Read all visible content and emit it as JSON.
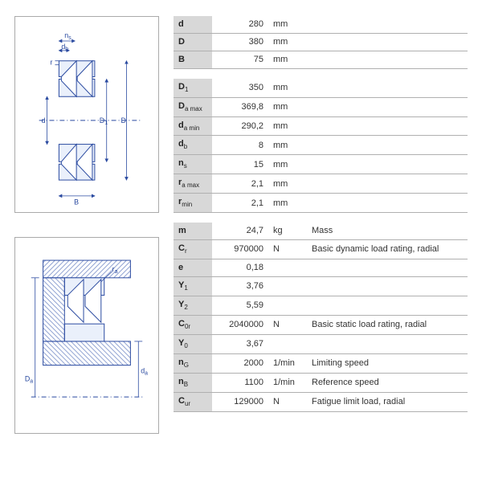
{
  "colors": {
    "row_border": "#b0b0b0",
    "symbol_bg": "#d8d8d8",
    "text": "#333333",
    "diagram_stroke": "#2a4aa0",
    "diagram_fill": "#eaf0fb",
    "hatch": "#7b91c9"
  },
  "groups": [
    {
      "rows": [
        {
          "symbol": "d",
          "sub": "",
          "value": "280",
          "unit": "mm",
          "desc": ""
        },
        {
          "symbol": "D",
          "sub": "",
          "value": "380",
          "unit": "mm",
          "desc": ""
        },
        {
          "symbol": "B",
          "sub": "",
          "value": "75",
          "unit": "mm",
          "desc": ""
        }
      ]
    },
    {
      "rows": [
        {
          "symbol": "D",
          "sub": "1",
          "value": "350",
          "unit": "mm",
          "desc": ""
        },
        {
          "symbol": "D",
          "sub": "a max",
          "value": "369,8",
          "unit": "mm",
          "desc": ""
        },
        {
          "symbol": "d",
          "sub": "a min",
          "value": "290,2",
          "unit": "mm",
          "desc": ""
        },
        {
          "symbol": "d",
          "sub": "b",
          "value": "8",
          "unit": "mm",
          "desc": ""
        },
        {
          "symbol": "n",
          "sub": "s",
          "value": "15",
          "unit": "mm",
          "desc": ""
        },
        {
          "symbol": "r",
          "sub": "a max",
          "value": "2,1",
          "unit": "mm",
          "desc": ""
        },
        {
          "symbol": "r",
          "sub": "min",
          "value": "2,1",
          "unit": "mm",
          "desc": ""
        }
      ]
    },
    {
      "rows": [
        {
          "symbol": "m",
          "sub": "",
          "value": "24,7",
          "unit": "kg",
          "desc": "Mass"
        },
        {
          "symbol": "C",
          "sub": "r",
          "value": "970000",
          "unit": "N",
          "desc": "Basic dynamic load rating, radial"
        },
        {
          "symbol": "e",
          "sub": "",
          "value": "0,18",
          "unit": "",
          "desc": ""
        },
        {
          "symbol": "Y",
          "sub": "1",
          "value": "3,76",
          "unit": "",
          "desc": ""
        },
        {
          "symbol": "Y",
          "sub": "2",
          "value": "5,59",
          "unit": "",
          "desc": ""
        },
        {
          "symbol": "C",
          "sub": "0r",
          "value": "2040000",
          "unit": "N",
          "desc": "Basic static load rating, radial"
        },
        {
          "symbol": "Y",
          "sub": "0",
          "value": "3,67",
          "unit": "",
          "desc": ""
        },
        {
          "symbol": "n",
          "sub": "G",
          "value": "2000",
          "unit": "1/min",
          "desc": "Limiting speed"
        },
        {
          "symbol": "n",
          "sub": "B",
          "value": "1100",
          "unit": "1/min",
          "desc": "Reference speed"
        },
        {
          "symbol": "C",
          "sub": "ur",
          "value": "129000",
          "unit": "N",
          "desc": "Fatigue limit load, radial"
        }
      ]
    }
  ],
  "diagram_labels": {
    "top": {
      "ns": "n",
      "ns_sub": "s",
      "db": "d",
      "db_sub": "b",
      "r": "r",
      "d": "d",
      "D1": "D",
      "D1_sub": "1",
      "D": "D",
      "B": "B"
    },
    "bottom": {
      "ra": "r",
      "ra_sub": "a",
      "Da": "D",
      "Da_sub": "a",
      "da": "d",
      "da_sub": "a"
    }
  }
}
